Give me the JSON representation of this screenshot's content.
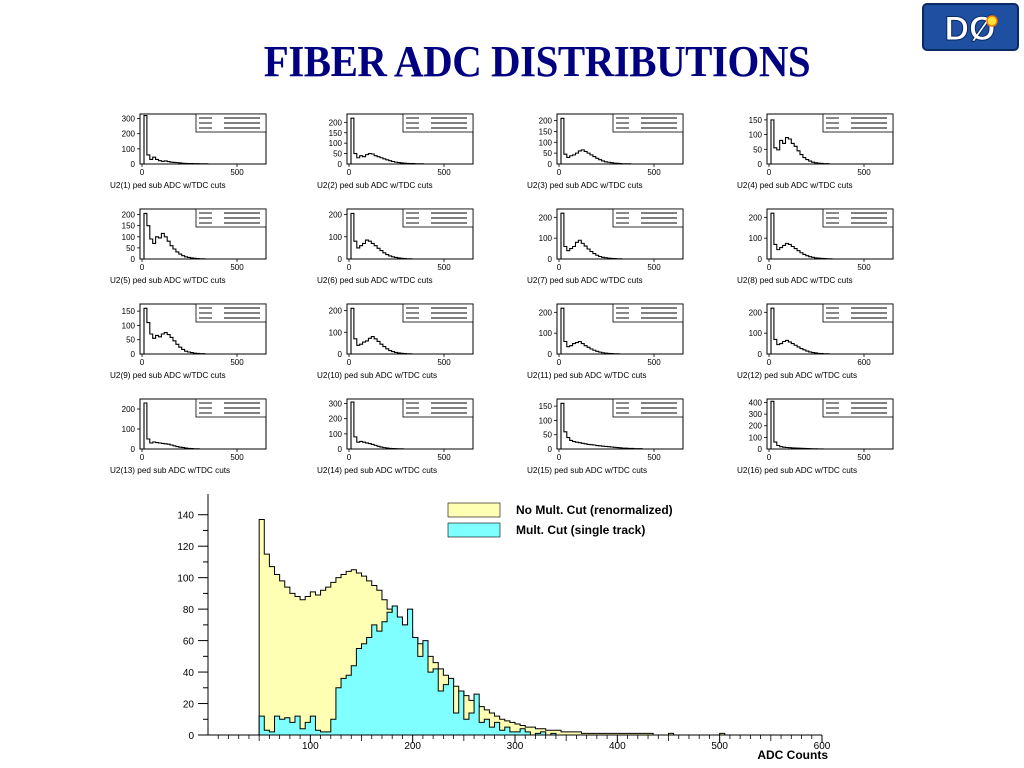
{
  "slide": {
    "title": "FIBER ADC DISTRIBUTIONS",
    "logo_text": "DØ"
  },
  "colors": {
    "title": "#000080",
    "no_cut_fill": "#ffffb4",
    "cut_fill": "#7fffff",
    "line": "#000000",
    "logo_bg": "#1e4fa0"
  },
  "chart_data": [
    {
      "type": "bar",
      "title": "",
      "xlabel": "ADC Counts",
      "ylabel": "",
      "xlim": [
        0,
        600
      ],
      "ylim": [
        0,
        150
      ],
      "x_ticks": [
        "100",
        "200",
        "300",
        "400",
        "500",
        "600"
      ],
      "y_ticks": [
        "0",
        "20",
        "40",
        "60",
        "80",
        "100",
        "120",
        "140"
      ],
      "legend_position": "top-right",
      "bin_width": 5,
      "bin_start": 50,
      "series": [
        {
          "name": "No Mult. Cut (renormalized)",
          "color": "#ffffb4",
          "values": [
            137,
            115,
            107,
            102,
            98,
            94,
            90,
            88,
            86,
            88,
            91,
            89,
            92,
            94,
            97,
            100,
            102,
            104,
            105,
            103,
            101,
            98,
            95,
            92,
            86,
            80,
            76,
            72,
            70,
            66,
            62,
            58,
            54,
            50,
            46,
            42,
            38,
            35,
            31,
            28,
            25,
            22,
            20,
            18,
            16,
            14,
            12,
            10,
            9,
            8,
            7,
            6,
            5,
            5,
            4,
            4,
            3,
            3,
            3,
            2,
            2,
            2,
            2,
            1,
            1,
            1,
            1,
            1,
            1,
            1,
            1,
            1,
            1,
            1,
            1,
            1,
            1,
            0,
            0,
            0,
            1,
            0,
            0,
            0,
            0,
            0,
            0,
            0,
            0,
            0,
            1,
            0,
            0,
            0,
            0,
            0,
            0,
            0,
            0,
            0,
            0,
            0
          ]
        },
        {
          "name": "Mult. Cut (single track)",
          "color": "#7fffff",
          "values": [
            12,
            3,
            2,
            12,
            10,
            11,
            8,
            12,
            4,
            8,
            12,
            3,
            2,
            2,
            10,
            30,
            36,
            38,
            44,
            55,
            58,
            62,
            70,
            66,
            72,
            78,
            82,
            75,
            70,
            80,
            62,
            50,
            60,
            40,
            42,
            28,
            32,
            36,
            14,
            28,
            10,
            14,
            26,
            8,
            10,
            5,
            8,
            3,
            5,
            2,
            2,
            4,
            2,
            0,
            1,
            2,
            0,
            1,
            0,
            0,
            0,
            0,
            0,
            0,
            0,
            0,
            0,
            0,
            0,
            0,
            0,
            0,
            0,
            0,
            0,
            0,
            0,
            0,
            0,
            0,
            0,
            0,
            0,
            0,
            0,
            0,
            0,
            0,
            0,
            0,
            0,
            0,
            0,
            0,
            0,
            0,
            0,
            0,
            0,
            0
          ]
        }
      ]
    },
    {
      "type": "bar",
      "title": "U2(1) ped sub ADC w/TDC cuts",
      "x_ticks": [
        "0",
        "500"
      ],
      "y_ticks": [
        "100",
        "200",
        "300"
      ],
      "ymax": 330,
      "values": [
        320,
        60,
        30,
        45,
        30,
        22,
        18,
        20,
        16,
        12,
        10,
        9,
        7,
        5,
        4,
        3,
        3,
        2,
        2,
        1,
        1,
        1,
        0,
        0,
        0,
        0,
        0,
        0,
        0,
        0,
        0,
        0,
        0,
        0,
        0,
        0,
        0,
        0,
        0,
        0
      ]
    },
    {
      "type": "bar",
      "title": "U2(2) ped sub ADC w/TDC cuts",
      "x_ticks": [
        "0",
        "500"
      ],
      "y_ticks": [
        "50",
        "100",
        "150",
        "200"
      ],
      "ymax": 240,
      "values": [
        220,
        50,
        30,
        40,
        35,
        45,
        50,
        48,
        40,
        35,
        30,
        25,
        20,
        16,
        12,
        9,
        7,
        5,
        4,
        3,
        2,
        2,
        1,
        1,
        1,
        0,
        0,
        0,
        0,
        0,
        0,
        0,
        0,
        0,
        0,
        0,
        0,
        0,
        0,
        0
      ]
    },
    {
      "type": "bar",
      "title": "U2(3) ped sub ADC w/TDC cuts",
      "x_ticks": [
        "0",
        "500"
      ],
      "y_ticks": [
        "50",
        "100",
        "150",
        "200"
      ],
      "ymax": 230,
      "values": [
        210,
        45,
        30,
        38,
        42,
        50,
        60,
        65,
        58,
        50,
        42,
        34,
        26,
        20,
        14,
        10,
        8,
        6,
        4,
        3,
        2,
        1,
        1,
        1,
        0,
        0,
        0,
        0,
        0,
        0,
        0,
        0,
        0,
        0,
        0,
        0,
        0,
        0,
        0,
        0
      ]
    },
    {
      "type": "bar",
      "title": "U2(4) ped sub ADC w/TDC cuts",
      "x_ticks": [
        "0",
        "500"
      ],
      "y_ticks": [
        "50",
        "100",
        "150"
      ],
      "ymax": 170,
      "values": [
        150,
        55,
        48,
        80,
        70,
        90,
        85,
        70,
        60,
        45,
        32,
        22,
        15,
        10,
        6,
        4,
        3,
        2,
        1,
        1,
        0,
        0,
        0,
        0,
        0,
        0,
        0,
        0,
        0,
        0,
        0,
        0,
        0,
        0,
        0,
        0,
        0,
        0,
        0,
        0
      ]
    },
    {
      "type": "bar",
      "title": "U2(5) ped sub ADC w/TDC cuts",
      "x_ticks": [
        "0",
        "500"
      ],
      "y_ticks": [
        "50",
        "100",
        "150",
        "200"
      ],
      "ymax": 225,
      "values": [
        205,
        150,
        90,
        70,
        100,
        95,
        115,
        100,
        80,
        60,
        45,
        32,
        22,
        15,
        10,
        7,
        5,
        3,
        2,
        1,
        1,
        0,
        0,
        0,
        0,
        0,
        0,
        0,
        0,
        0,
        0,
        0,
        0,
        0,
        0,
        0,
        0,
        0,
        0,
        0
      ]
    },
    {
      "type": "bar",
      "title": "U2(6) ped sub ADC w/TDC cuts",
      "x_ticks": [
        "0",
        "500"
      ],
      "y_ticks": [
        "100",
        "200"
      ],
      "ymax": 225,
      "values": [
        205,
        80,
        50,
        60,
        70,
        85,
        80,
        70,
        60,
        48,
        38,
        28,
        20,
        14,
        10,
        7,
        5,
        3,
        2,
        1,
        1,
        0,
        0,
        0,
        0,
        0,
        0,
        0,
        0,
        0,
        0,
        0,
        0,
        0,
        0,
        0,
        0,
        0,
        0,
        0
      ]
    },
    {
      "type": "bar",
      "title": "U2(7) ped sub ADC w/TDC cuts",
      "x_ticks": [
        "0",
        "500"
      ],
      "y_ticks": [
        "100",
        "200"
      ],
      "ymax": 240,
      "values": [
        220,
        60,
        40,
        50,
        60,
        80,
        90,
        75,
        62,
        48,
        36,
        26,
        18,
        12,
        8,
        6,
        4,
        3,
        2,
        1,
        1,
        0,
        0,
        0,
        0,
        0,
        0,
        0,
        0,
        0,
        0,
        0,
        0,
        0,
        0,
        0,
        0,
        0,
        0,
        0
      ]
    },
    {
      "type": "bar",
      "title": "U2(8) ped sub ADC w/TDC cuts",
      "x_ticks": [
        "0",
        "500"
      ],
      "y_ticks": [
        "100",
        "200"
      ],
      "ymax": 240,
      "values": [
        220,
        70,
        45,
        55,
        65,
        75,
        70,
        60,
        50,
        40,
        30,
        22,
        16,
        11,
        8,
        5,
        4,
        3,
        2,
        1,
        1,
        0,
        0,
        0,
        0,
        0,
        0,
        0,
        0,
        0,
        0,
        0,
        0,
        0,
        0,
        0,
        0,
        0,
        0,
        0
      ]
    },
    {
      "type": "bar",
      "title": "U2(9) ped sub ADC w/TDC cuts",
      "x_ticks": [
        "0",
        "500"
      ],
      "y_ticks": [
        "50",
        "100",
        "150"
      ],
      "ymax": 175,
      "values": [
        160,
        110,
        70,
        55,
        65,
        60,
        70,
        75,
        68,
        58,
        46,
        34,
        24,
        16,
        10,
        7,
        5,
        3,
        2,
        1,
        1,
        0,
        0,
        0,
        0,
        0,
        0,
        0,
        0,
        0,
        0,
        0,
        0,
        0,
        0,
        0,
        0,
        0,
        0,
        0
      ]
    },
    {
      "type": "bar",
      "title": "U2(10) ped sub ADC w/TDC cuts",
      "x_ticks": [
        "0",
        "500"
      ],
      "y_ticks": [
        "100",
        "200"
      ],
      "ymax": 230,
      "values": [
        210,
        70,
        40,
        45,
        55,
        60,
        72,
        80,
        70,
        58,
        45,
        34,
        24,
        16,
        11,
        7,
        5,
        3,
        2,
        1,
        1,
        0,
        0,
        0,
        0,
        0,
        0,
        0,
        0,
        0,
        0,
        0,
        0,
        0,
        0,
        0,
        0,
        0,
        0,
        0
      ]
    },
    {
      "type": "bar",
      "title": "U2(11) ped sub ADC w/TDC cuts",
      "x_ticks": [
        "0",
        "500"
      ],
      "y_ticks": [
        "100",
        "200"
      ],
      "ymax": 240,
      "values": [
        220,
        60,
        35,
        40,
        50,
        55,
        60,
        50,
        40,
        32,
        24,
        18,
        13,
        9,
        6,
        4,
        3,
        2,
        1,
        1,
        0,
        0,
        0,
        0,
        0,
        0,
        0,
        0,
        0,
        0,
        0,
        0,
        0,
        0,
        0,
        0,
        0,
        0,
        0,
        0
      ]
    },
    {
      "type": "bar",
      "title": "U2(12) ped sub ADC w/TDC cuts",
      "x_ticks": [
        "0",
        "600"
      ],
      "y_ticks": [
        "100",
        "200"
      ],
      "ymax": 240,
      "values": [
        220,
        70,
        45,
        50,
        60,
        65,
        58,
        50,
        42,
        34,
        26,
        20,
        14,
        10,
        7,
        5,
        3,
        2,
        1,
        1,
        0,
        0,
        0,
        0,
        0,
        0,
        0,
        0,
        0,
        0,
        0,
        0,
        0,
        0,
        0,
        0,
        0,
        0,
        0,
        0
      ]
    },
    {
      "type": "bar",
      "title": "U2(13) ped sub ADC w/TDC cuts",
      "x_ticks": [
        "0",
        "500"
      ],
      "y_ticks": [
        "100",
        "200"
      ],
      "ymax": 250,
      "values": [
        230,
        50,
        30,
        35,
        32,
        30,
        28,
        26,
        24,
        20,
        16,
        12,
        9,
        7,
        5,
        3,
        2,
        1,
        1,
        0,
        0,
        0,
        0,
        0,
        0,
        0,
        0,
        0,
        0,
        0,
        0,
        0,
        0,
        0,
        0,
        0,
        0,
        0,
        0,
        0
      ]
    },
    {
      "type": "bar",
      "title": "U2(14) ped sub ADC w/TDC cuts",
      "x_ticks": [
        "0",
        "500"
      ],
      "y_ticks": [
        "100",
        "200",
        "300"
      ],
      "ymax": 330,
      "values": [
        310,
        80,
        45,
        50,
        45,
        40,
        36,
        30,
        24,
        18,
        13,
        9,
        6,
        4,
        3,
        2,
        1,
        1,
        0,
        0,
        0,
        0,
        0,
        0,
        0,
        0,
        0,
        0,
        0,
        0,
        0,
        0,
        0,
        0,
        0,
        0,
        0,
        0,
        0,
        0
      ]
    },
    {
      "type": "bar",
      "title": "U2(15) ped sub ADC w/TDC cuts",
      "x_ticks": [
        "0",
        "500"
      ],
      "y_ticks": [
        "50",
        "100",
        "150"
      ],
      "ymax": 175,
      "values": [
        160,
        60,
        40,
        30,
        26,
        24,
        22,
        20,
        18,
        16,
        15,
        14,
        12,
        11,
        10,
        9,
        8,
        7,
        6,
        5,
        4,
        3,
        3,
        2,
        2,
        1,
        1,
        1,
        0,
        0,
        0,
        0,
        0,
        0,
        0,
        0,
        0,
        0,
        0,
        0
      ]
    },
    {
      "type": "bar",
      "title": "U2(16) ped sub ADC w/TDC cuts",
      "x_ticks": [
        "0",
        "500"
      ],
      "y_ticks": [
        "100",
        "200",
        "300",
        "400"
      ],
      "ymax": 430,
      "values": [
        410,
        60,
        30,
        20,
        16,
        13,
        11,
        9,
        8,
        7,
        6,
        5,
        4,
        3,
        2,
        2,
        1,
        1,
        0,
        0,
        0,
        0,
        0,
        0,
        0,
        0,
        0,
        0,
        0,
        0,
        0,
        0,
        0,
        0,
        0,
        0,
        0,
        0,
        0,
        0
      ]
    }
  ]
}
